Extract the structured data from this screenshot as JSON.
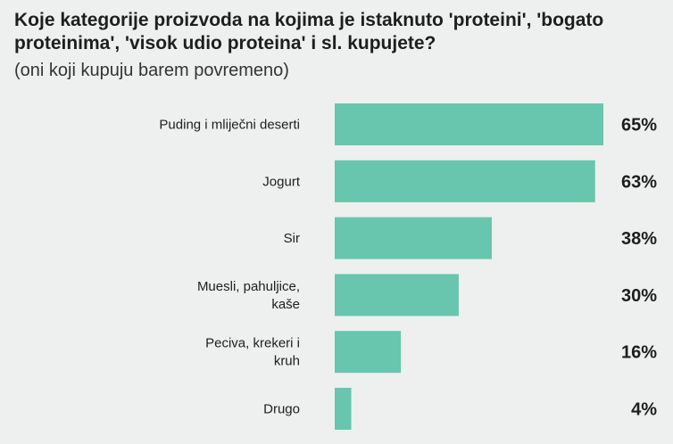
{
  "chart_data": {
    "type": "bar",
    "orientation": "horizontal",
    "title": "Koje kategorije proizvoda na kojima je istaknuto 'proteini', 'bogato proteinima', 'visok udio proteina' i sl. kupujete?",
    "subtitle": "(oni koji kupuju barem povremeno)",
    "categories": [
      [
        "Puding i mliječni deserti"
      ],
      [
        "Jogurt"
      ],
      [
        "Sir"
      ],
      [
        "Muesli, pahuljice,",
        "kaše"
      ],
      [
        "Peciva, krekeri i",
        "kruh"
      ],
      [
        "Drugo"
      ]
    ],
    "values": [
      65,
      63,
      38,
      30,
      16,
      4
    ],
    "value_labels": [
      "65%",
      "63%",
      "38%",
      "30%",
      "16%",
      "4%"
    ],
    "xlim": [
      0,
      65
    ],
    "bar_color": "#67c6ad",
    "grid": false,
    "legend": "none"
  }
}
